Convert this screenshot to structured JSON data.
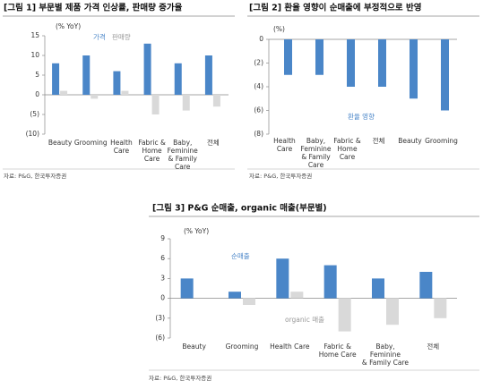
{
  "chart_data": [
    {
      "type": "bar",
      "title": "[그림 1] 부문별 제품 가격 인상률, 판매량 증가율",
      "y_label": "(% YoY)",
      "source": "자료: P&G, 한국투자증권",
      "categories": [
        "Beauty",
        "Grooming",
        "Health\nCare",
        "Fabric &\nHome\nCare",
        "Baby,\nFeminine\n& Family\nCare",
        "전체"
      ],
      "series": [
        {
          "name": "가격",
          "color": "#4a86c8",
          "values": [
            8,
            10,
            6,
            13,
            8,
            10
          ]
        },
        {
          "name": "판매량",
          "color": "#d9d9d9",
          "values": [
            1,
            -1,
            1,
            -5,
            -4,
            -3
          ]
        }
      ],
      "ylim": [
        -10,
        15
      ],
      "yticks": [
        15,
        10,
        5,
        0,
        {
          "value": -5,
          "label": "(5)"
        },
        {
          "value": -10,
          "label": "(10)"
        }
      ]
    },
    {
      "type": "bar",
      "title": "[그림 2] 환율 영향이 순매출에 부정적으로 반영",
      "y_label": "(%)",
      "source": "자료: P&G, 한국투자증권",
      "categories": [
        "Health\nCare",
        "Baby,\nFeminine\n& Family\nCare",
        "Fabric &\nHome\nCare",
        "전체",
        "Beauty",
        "Grooming"
      ],
      "series": [
        {
          "name": "환율 영향",
          "color": "#4a86c8",
          "values": [
            -3,
            -3,
            -4,
            -4,
            -5,
            -6
          ]
        }
      ],
      "ylim": [
        -8,
        0
      ],
      "yticks": [
        0,
        {
          "value": -2,
          "label": "(2)"
        },
        {
          "value": -4,
          "label": "(4)"
        },
        {
          "value": -6,
          "label": "(6)"
        },
        {
          "value": -8,
          "label": "(8)"
        }
      ]
    },
    {
      "type": "bar",
      "title": "[그림 3] P&G 순매출, organic 매출(부문별)",
      "y_label": "(% YoY)",
      "source": "자료: P&G, 한국투자증권",
      "categories": [
        "Beauty",
        "Grooming",
        "Health Care",
        "Fabric &\nHome Care",
        "Baby,\nFeminine\n& Family Care",
        "전체"
      ],
      "series": [
        {
          "name": "순매출",
          "color": "#4a86c8",
          "values": [
            3,
            1,
            6,
            5,
            3,
            4
          ]
        },
        {
          "name": "organic 매출",
          "color": "#d9d9d9",
          "values": [
            0,
            -1,
            1,
            -5,
            -4,
            -3
          ]
        }
      ],
      "ylim": [
        -6,
        9
      ],
      "yticks": [
        9,
        6,
        3,
        0,
        {
          "value": -3,
          "label": "(3)"
        },
        {
          "value": -6,
          "label": "(6)"
        }
      ]
    }
  ]
}
